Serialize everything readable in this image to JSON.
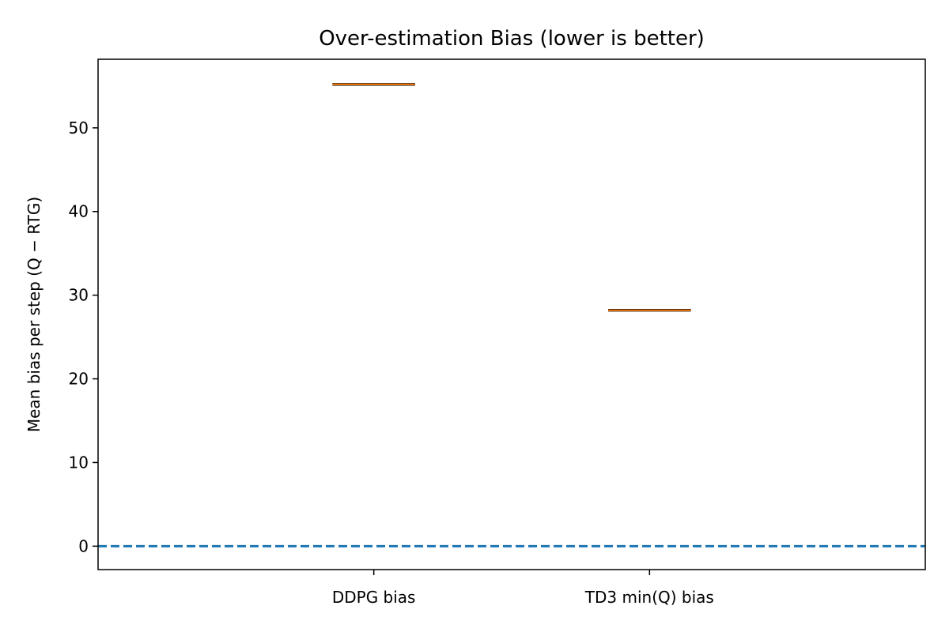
{
  "chart_data": {
    "type": "box",
    "title": "Over-estimation Bias (lower is better)",
    "ylabel": "Mean bias per step (Q − RTG)",
    "xlabel": "",
    "categories": [
      "DDPG bias",
      "TD3 min(Q) bias"
    ],
    "values": [
      55.2,
      28.2
    ],
    "ylim": [
      -2.8,
      58.2
    ],
    "yticks": [
      0,
      10,
      20,
      30,
      40,
      50
    ],
    "reference_line": {
      "y": 0,
      "style": "dashed",
      "color": "#1f77b4"
    },
    "median_color": "#ff7f0e",
    "grid": false
  }
}
